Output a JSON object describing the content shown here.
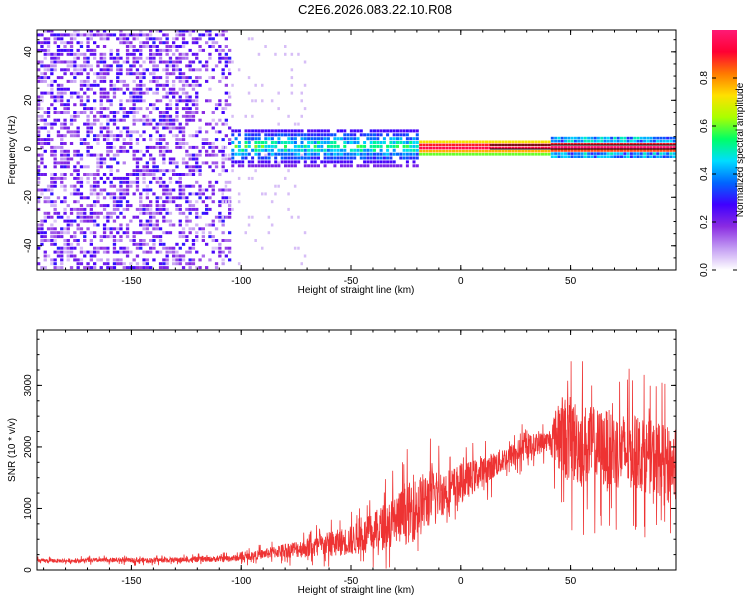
{
  "page": {
    "title": "C2E6.2026.083.22.10.R08"
  },
  "chart_data": [
    {
      "type": "heatmap",
      "title": "C2E6.2026.083.22.10.R08",
      "xlabel": "Height of straight line (km)",
      "ylabel": "Frequency (Hz)",
      "xlim": [
        -193,
        98
      ],
      "ylim": [
        -50,
        49
      ],
      "xticks": [
        -150,
        -100,
        -50,
        0,
        50
      ],
      "yticks": [
        -40,
        -20,
        0,
        20,
        40
      ],
      "colorbar": {
        "label": "Normalized spectral amplitude",
        "range": [
          0,
          1
        ],
        "ticks": [
          0.0,
          0.2,
          0.4,
          0.6,
          0.8
        ],
        "colors": [
          "#ffffff",
          "#c39cf3",
          "#8a2be2",
          "#3f00ff",
          "#0066ff",
          "#00ddff",
          "#00ff66",
          "#aaff00",
          "#ffe000",
          "#ff7a00",
          "#ff0033",
          "#ff1a75"
        ]
      },
      "regions": [
        {
          "x": [
            -193,
            -105
          ],
          "description_value": "scattered low amplitude across full frequency band",
          "amplitude": [
            0.05,
            0.3
          ]
        },
        {
          "x": [
            -105,
            -20
          ],
          "freq_halfwidth_hz": 8,
          "amplitude": [
            0.2,
            0.55
          ]
        },
        {
          "x": [
            -20,
            98
          ],
          "freq_halfwidth_hz": 3,
          "amplitude": [
            0.6,
            1.0
          ]
        }
      ]
    },
    {
      "type": "line",
      "xlabel": "Height of straight line (km)",
      "ylabel": "SNR (10 * v/v)",
      "xlim": [
        -193,
        98
      ],
      "ylim": [
        0,
        3900
      ],
      "xticks": [
        -150,
        -100,
        -50,
        0,
        50
      ],
      "yticks": [
        0,
        1000,
        2000,
        3000
      ],
      "series": [
        {
          "color": "#ee3333",
          "x": [
            -193,
            -180,
            -160,
            -140,
            -120,
            -110,
            -100,
            -90,
            -80,
            -70,
            -60,
            -50,
            -40,
            -30,
            -25,
            -20,
            -15,
            -10,
            -5,
            0,
            10,
            20,
            30,
            40,
            45,
            50,
            55,
            60,
            70,
            80,
            90,
            98
          ],
          "y": [
            150,
            150,
            160,
            160,
            170,
            180,
            200,
            260,
            320,
            360,
            420,
            480,
            600,
            820,
            900,
            1000,
            1150,
            1250,
            1300,
            1400,
            1600,
            1800,
            2000,
            2100,
            2200,
            2100,
            2050,
            2000,
            1950,
            1900,
            1800,
            1700
          ],
          "noise_amplitude": [
            40,
            40,
            45,
            50,
            55,
            60,
            70,
            100,
            150,
            200,
            250,
            300,
            400,
            550,
            600,
            650,
            600,
            500,
            450,
            400,
            300,
            250,
            250,
            200,
            800,
            900,
            850,
            800,
            800,
            750,
            750,
            700
          ]
        }
      ]
    }
  ]
}
